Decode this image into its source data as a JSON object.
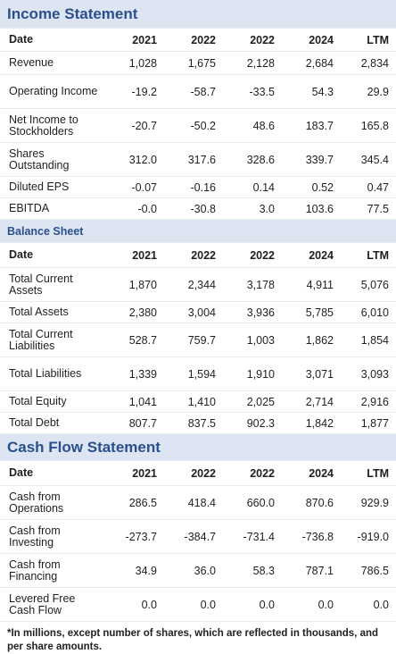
{
  "income": {
    "title": "Income Statement",
    "header": [
      "Date",
      "2021",
      "2022",
      "2022",
      "2024",
      "LTM"
    ],
    "rows": [
      [
        "Revenue",
        "1,028",
        "1,675",
        "2,128",
        "2,684",
        "2,834"
      ],
      [
        "Operating Income",
        "-19.2",
        "-58.7",
        "-33.5",
        "54.3",
        "29.9"
      ],
      [
        "Net Income to Stockholders",
        "-20.7",
        "-50.2",
        "48.6",
        "183.7",
        "165.8"
      ],
      [
        "Shares Outstanding",
        "312.0",
        "317.6",
        "328.6",
        "339.7",
        "345.4"
      ],
      [
        "Diluted EPS",
        "-0.07",
        "-0.16",
        "0.14",
        "0.52",
        "0.47"
      ],
      [
        "EBITDA",
        "-0.0",
        "-30.8",
        "3.0",
        "103.6",
        "77.5"
      ]
    ]
  },
  "balance": {
    "title": "Balance Sheet",
    "header": [
      "Date",
      "2021",
      "2022",
      "2022",
      "2024",
      "LTM"
    ],
    "rows": [
      [
        "Total Current Assets",
        "1,870",
        "2,344",
        "3,178",
        "4,911",
        "5,076"
      ],
      [
        "Total Assets",
        "2,380",
        "3,004",
        "3,936",
        "5,785",
        "6,010"
      ],
      [
        "Total Current Liabilities",
        "528.7",
        "759.7",
        "1,003",
        "1,862",
        "1,854"
      ],
      [
        "Total Liabilities",
        "1,339",
        "1,594",
        "1,910",
        "3,071",
        "3,093"
      ],
      [
        "Total Equity",
        "1,041",
        "1,410",
        "2,025",
        "2,714",
        "2,916"
      ],
      [
        "Total Debt",
        "807.7",
        "837.5",
        "902.3",
        "1,842",
        "1,877"
      ]
    ]
  },
  "cashflow": {
    "title": "Cash Flow Statement",
    "header": [
      "Date",
      "2021",
      "2022",
      "2022",
      "2024",
      "LTM"
    ],
    "rows": [
      [
        "Cash from Operations",
        "286.5",
        "418.4",
        "660.0",
        "870.6",
        "929.9"
      ],
      [
        "Cash from Investing",
        "-273.7",
        "-384.7",
        "-731.4",
        "-736.8",
        "-919.0"
      ],
      [
        "Cash from Financing",
        "34.9",
        "36.0",
        "58.3",
        "787.1",
        "786.5"
      ],
      [
        "Levered Free Cash Flow",
        "0.0",
        "0.0",
        "0.0",
        "0.0",
        "0.0"
      ]
    ]
  },
  "footnote": "*In millions, except number of shares, which are reflected in thousands, and per share amounts."
}
